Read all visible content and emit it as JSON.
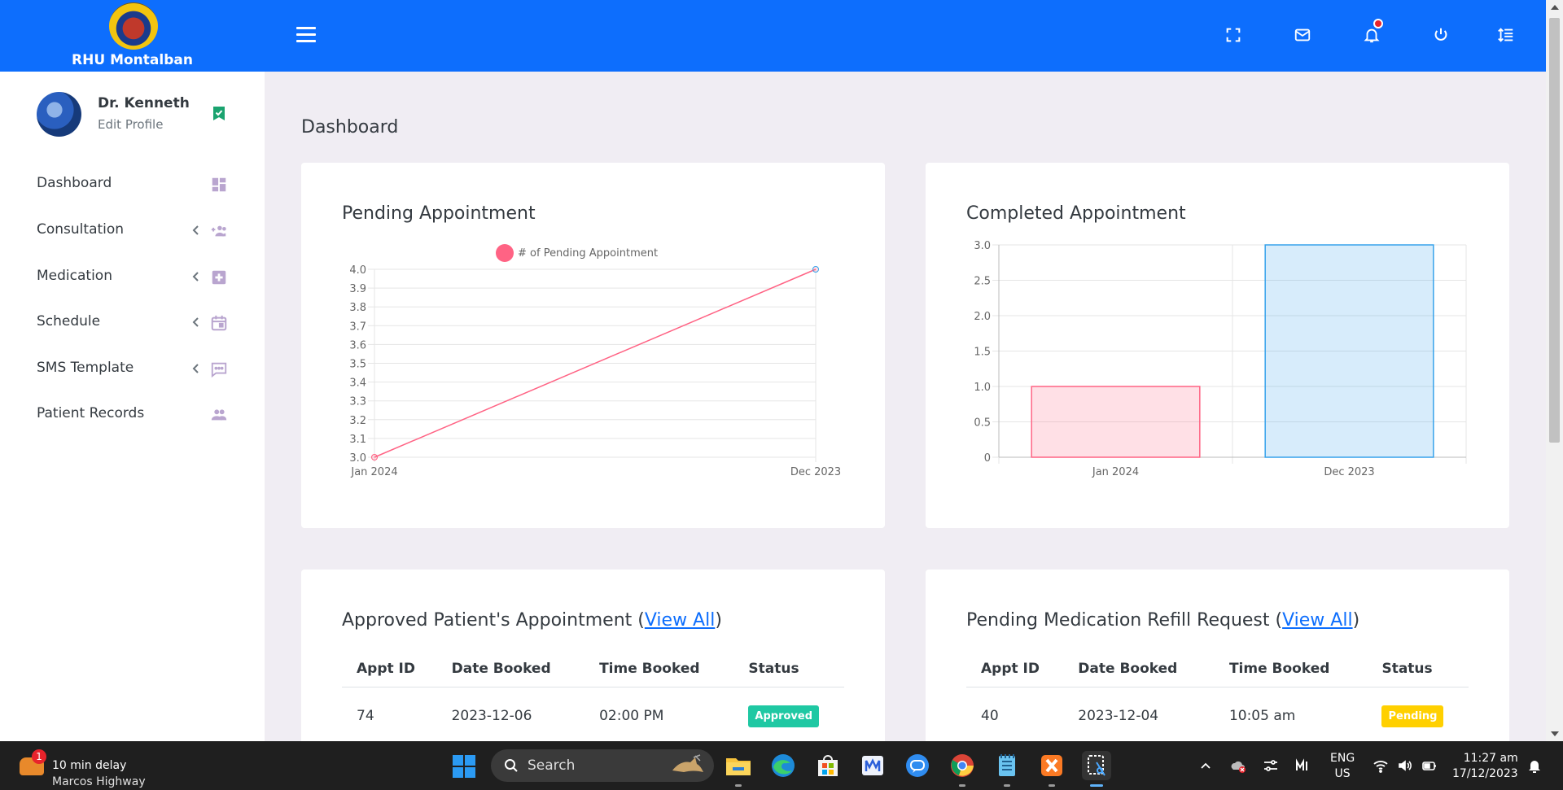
{
  "header": {
    "brand": "RHU Montalban",
    "colors": {
      "bar": "#0d6efd"
    }
  },
  "profile": {
    "name": "Dr. Kenneth",
    "edit": "Edit Profile"
  },
  "sidebar": {
    "items": [
      {
        "label": "Dashboard",
        "icon": "dashboard-icon",
        "has_chevron": false
      },
      {
        "label": "Consultation",
        "icon": "add-group-icon",
        "has_chevron": true
      },
      {
        "label": "Medication",
        "icon": "medical-plus-icon",
        "has_chevron": true
      },
      {
        "label": "Schedule",
        "icon": "calendar-icon",
        "has_chevron": true
      },
      {
        "label": "SMS Template",
        "icon": "message-icon",
        "has_chevron": true
      },
      {
        "label": "Patient Records",
        "icon": "people-icon",
        "has_chevron": false
      }
    ]
  },
  "main": {
    "title": "Dashboard",
    "pending_card": {
      "title": "Pending Appointment"
    },
    "completed_card": {
      "title": "Completed Appointment"
    },
    "approved_card": {
      "title": "Approved Patient's Appointment (",
      "link": "View All",
      "close": ")",
      "columns": [
        "Appt ID",
        "Date Booked",
        "Time Booked",
        "Status"
      ],
      "rows": [
        {
          "id": "74",
          "date": "2023-12-06",
          "time": "02:00 PM",
          "status": "Approved"
        }
      ]
    },
    "refill_card": {
      "title": "Pending Medication Refill Request (",
      "link": "View All",
      "close": ")",
      "columns": [
        "Appt ID",
        "Date Booked",
        "Time Booked",
        "Status"
      ],
      "rows": [
        {
          "id": "40",
          "date": "2023-12-04",
          "time": "10:05 am",
          "status": "Pending"
        }
      ]
    }
  },
  "chart_data": [
    {
      "type": "line",
      "title": "Pending Appointment",
      "categories": [
        "Jan 2024",
        "Dec 2023"
      ],
      "series": [
        {
          "name": "# of Pending Appointment",
          "values": [
            3.0,
            4.0
          ],
          "color": "#ff6384"
        }
      ],
      "ylim": [
        3.0,
        4.0
      ],
      "yticks": [
        "4.0",
        "3.9",
        "3.8",
        "3.7",
        "3.6",
        "3.5",
        "3.4",
        "3.3",
        "3.2",
        "3.1",
        "3.0"
      ],
      "grid": true,
      "legend": "top"
    },
    {
      "type": "bar",
      "title": "Completed Appointment",
      "categories": [
        "Jan 2024",
        "Dec 2023"
      ],
      "values": [
        1,
        3
      ],
      "colors": [
        "#ff6384",
        "#36a2eb"
      ],
      "ylim": [
        0,
        3.0
      ],
      "yticks": [
        "3.0",
        "2.5",
        "2.0",
        "1.5",
        "1.0",
        "0.5",
        "0"
      ],
      "grid": true
    }
  ],
  "taskbar": {
    "weather_line1": "10 min delay",
    "weather_line2": "Marcos Highway",
    "alert_count": "1",
    "search_label": "Search",
    "lang_line1": "ENG",
    "lang_line2": "US",
    "time": "11:27 am",
    "date": "17/12/2023"
  }
}
